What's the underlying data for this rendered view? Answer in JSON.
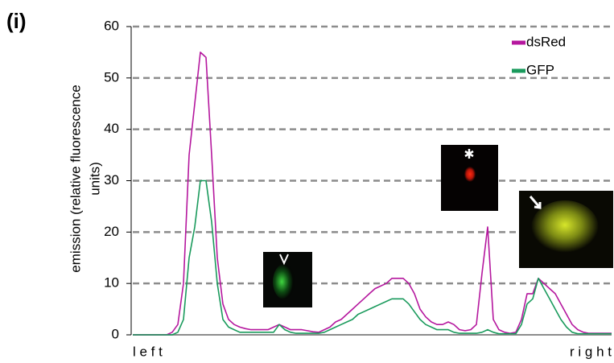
{
  "panel_label": "(i)",
  "chart_data": {
    "type": "line",
    "ylabel_lines": [
      "emission (relative fluorescence",
      "units)"
    ],
    "categories": [
      "l e f t",
      null,
      null,
      null,
      null,
      null,
      null,
      null,
      null,
      null,
      null,
      null,
      null,
      null,
      null,
      null,
      null,
      null,
      null,
      null,
      null,
      null,
      null,
      null,
      null,
      null,
      null,
      null,
      null,
      null,
      null,
      null,
      null,
      null,
      null,
      null,
      null,
      null,
      null,
      null,
      null,
      null,
      null,
      null,
      null,
      null,
      null,
      null,
      null,
      null,
      null,
      null,
      null,
      null,
      null,
      null,
      null,
      null,
      null,
      null,
      null,
      null,
      null,
      null,
      null,
      null,
      null,
      null,
      null,
      null,
      null,
      null,
      null,
      null,
      null,
      null,
      null,
      null,
      null,
      null,
      null,
      null,
      null,
      null,
      null,
      "r i g h t"
    ],
    "series": [
      {
        "name": "dsRed",
        "color": "#b5179e",
        "values": [
          0,
          0,
          0,
          0,
          0,
          0,
          0,
          0.5,
          2,
          10,
          35,
          45,
          55,
          54,
          35,
          15,
          6,
          3,
          2,
          1.5,
          1.2,
          1,
          1,
          1,
          1,
          1.5,
          2,
          1.5,
          1,
          1,
          1,
          0.8,
          0.6,
          0.5,
          1,
          1.5,
          2.5,
          3,
          4,
          5,
          6,
          7,
          8,
          9,
          9.5,
          10,
          11,
          11,
          11,
          10,
          8,
          5,
          3.5,
          2.5,
          2,
          2,
          2.5,
          2,
          1,
          0.8,
          1,
          2,
          12,
          21,
          3,
          1,
          0.5,
          0.3,
          0.5,
          3,
          8,
          8,
          11,
          10,
          9,
          8,
          6,
          4,
          2,
          1,
          0.5,
          0.3,
          0.3,
          0.3,
          0.3,
          0.3
        ]
      },
      {
        "name": "GFP",
        "color": "#1a9a5c",
        "values": [
          0,
          0,
          0,
          0,
          0,
          0,
          0,
          0,
          0.5,
          3,
          15,
          21,
          30,
          30,
          22,
          10,
          3,
          1.5,
          1,
          0.5,
          0.5,
          0.5,
          0.5,
          0.5,
          0.5,
          0.5,
          2,
          1,
          0.5,
          0.3,
          0.3,
          0.3,
          0.3,
          0.3,
          0.5,
          1,
          1.5,
          2,
          2.5,
          3,
          4,
          4.5,
          5,
          5.5,
          6,
          6.5,
          7,
          7,
          7,
          6,
          4.5,
          3,
          2,
          1.5,
          1,
          1,
          1,
          0.5,
          0.3,
          0.3,
          0.3,
          0.3,
          0.5,
          1,
          0.5,
          0.2,
          0.2,
          0.2,
          0.2,
          2,
          6,
          7,
          11,
          9,
          7,
          5,
          3,
          1.5,
          0.5,
          0.2,
          0.2,
          0.2,
          0.2,
          0.2,
          0.2,
          0.2
        ]
      }
    ],
    "ylim": [
      0,
      60
    ],
    "yticks": [
      0,
      10,
      20,
      30,
      40,
      50,
      60
    ],
    "grid": true,
    "legend": "upper right"
  }
}
